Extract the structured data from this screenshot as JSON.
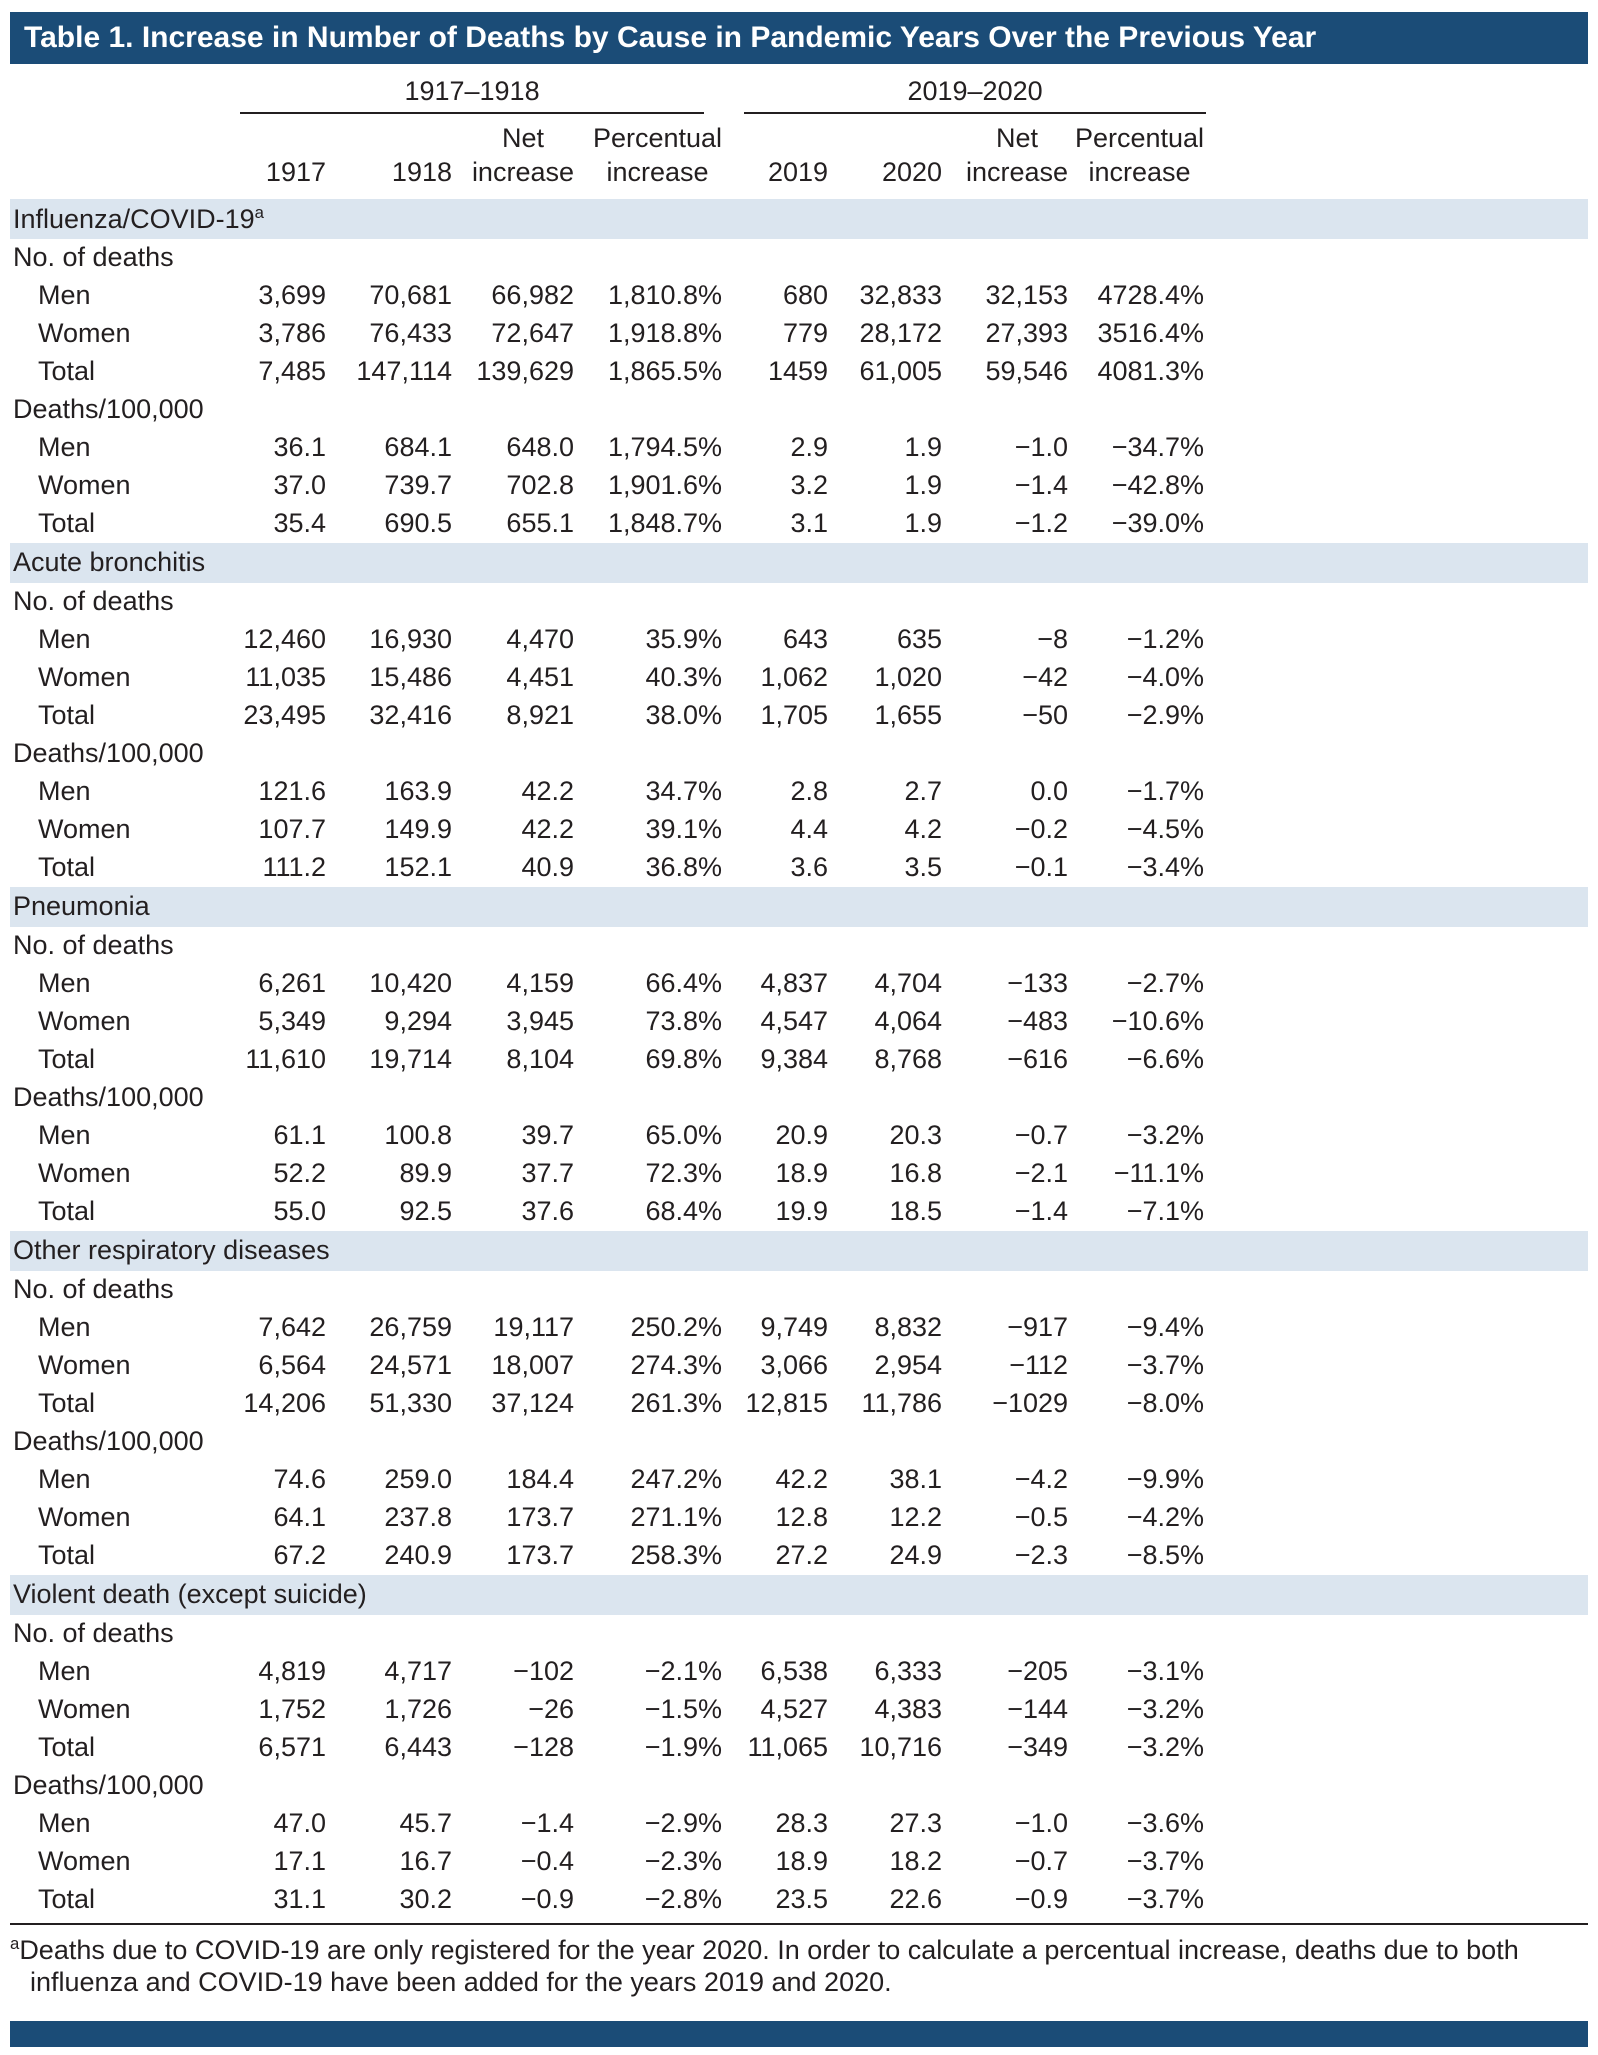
{
  "title": "Table 1. Increase in Number of Deaths by Cause in Pandemic Years Over the Previous Year",
  "colors": {
    "title_bar": "#1b4c77",
    "section_band": "#dbe5ef",
    "text": "#231f20",
    "rule": "#231f20"
  },
  "chart_data": {
    "type": "table",
    "column_groups": [
      "1917–1918",
      "2019–2020"
    ],
    "columns": [
      "1917",
      "1918",
      "Net\nincrease",
      "Percentual\nincrease",
      "2019",
      "2020",
      "Net\nincrease",
      "Percentual\nincrease"
    ],
    "sections": [
      {
        "name": "Influenza/COVID-19",
        "superscript": "a",
        "subsections": [
          {
            "name": "No. of deaths",
            "rows": [
              {
                "label": "Men",
                "values": [
                  "3,699",
                  "70,681",
                  "66,982",
                  "1,810.8%",
                  "680",
                  "32,833",
                  "32,153",
                  "4728.4%"
                ]
              },
              {
                "label": "Women",
                "values": [
                  "3,786",
                  "76,433",
                  "72,647",
                  "1,918.8%",
                  "779",
                  "28,172",
                  "27,393",
                  "3516.4%"
                ]
              },
              {
                "label": "Total",
                "values": [
                  "7,485",
                  "147,114",
                  "139,629",
                  "1,865.5%",
                  "1459",
                  "61,005",
                  "59,546",
                  "4081.3%"
                ]
              }
            ]
          },
          {
            "name": "Deaths/100,000",
            "rows": [
              {
                "label": "Men",
                "values": [
                  "36.1",
                  "684.1",
                  "648.0",
                  "1,794.5%",
                  "2.9",
                  "1.9",
                  "−1.0",
                  "−34.7%"
                ]
              },
              {
                "label": "Women",
                "values": [
                  "37.0",
                  "739.7",
                  "702.8",
                  "1,901.6%",
                  "3.2",
                  "1.9",
                  "−1.4",
                  "−42.8%"
                ]
              },
              {
                "label": "Total",
                "values": [
                  "35.4",
                  "690.5",
                  "655.1",
                  "1,848.7%",
                  "3.1",
                  "1.9",
                  "−1.2",
                  "−39.0%"
                ]
              }
            ]
          }
        ]
      },
      {
        "name": "Acute bronchitis",
        "superscript": "",
        "subsections": [
          {
            "name": "No. of deaths",
            "rows": [
              {
                "label": "Men",
                "values": [
                  "12,460",
                  "16,930",
                  "4,470",
                  "35.9%",
                  "643",
                  "635",
                  "−8",
                  "−1.2%"
                ]
              },
              {
                "label": "Women",
                "values": [
                  "11,035",
                  "15,486",
                  "4,451",
                  "40.3%",
                  "1,062",
                  "1,020",
                  "−42",
                  "−4.0%"
                ]
              },
              {
                "label": "Total",
                "values": [
                  "23,495",
                  "32,416",
                  "8,921",
                  "38.0%",
                  "1,705",
                  "1,655",
                  "−50",
                  "−2.9%"
                ]
              }
            ]
          },
          {
            "name": "Deaths/100,000",
            "rows": [
              {
                "label": "Men",
                "values": [
                  "121.6",
                  "163.9",
                  "42.2",
                  "34.7%",
                  "2.8",
                  "2.7",
                  "0.0",
                  "−1.7%"
                ]
              },
              {
                "label": "Women",
                "values": [
                  "107.7",
                  "149.9",
                  "42.2",
                  "39.1%",
                  "4.4",
                  "4.2",
                  "−0.2",
                  "−4.5%"
                ]
              },
              {
                "label": "Total",
                "values": [
                  "111.2",
                  "152.1",
                  "40.9",
                  "36.8%",
                  "3.6",
                  "3.5",
                  "−0.1",
                  "−3.4%"
                ]
              }
            ]
          }
        ]
      },
      {
        "name": "Pneumonia",
        "superscript": "",
        "subsections": [
          {
            "name": "No. of deaths",
            "rows": [
              {
                "label": "Men",
                "values": [
                  "6,261",
                  "10,420",
                  "4,159",
                  "66.4%",
                  "4,837",
                  "4,704",
                  "−133",
                  "−2.7%"
                ]
              },
              {
                "label": "Women",
                "values": [
                  "5,349",
                  "9,294",
                  "3,945",
                  "73.8%",
                  "4,547",
                  "4,064",
                  "−483",
                  "−10.6%"
                ]
              },
              {
                "label": "Total",
                "values": [
                  "11,610",
                  "19,714",
                  "8,104",
                  "69.8%",
                  "9,384",
                  "8,768",
                  "−616",
                  "−6.6%"
                ]
              }
            ]
          },
          {
            "name": "Deaths/100,000",
            "rows": [
              {
                "label": "Men",
                "values": [
                  "61.1",
                  "100.8",
                  "39.7",
                  "65.0%",
                  "20.9",
                  "20.3",
                  "−0.7",
                  "−3.2%"
                ]
              },
              {
                "label": "Women",
                "values": [
                  "52.2",
                  "89.9",
                  "37.7",
                  "72.3%",
                  "18.9",
                  "16.8",
                  "−2.1",
                  "−11.1%"
                ]
              },
              {
                "label": "Total",
                "values": [
                  "55.0",
                  "92.5",
                  "37.6",
                  "68.4%",
                  "19.9",
                  "18.5",
                  "−1.4",
                  "−7.1%"
                ]
              }
            ]
          }
        ]
      },
      {
        "name": "Other respiratory diseases",
        "superscript": "",
        "subsections": [
          {
            "name": "No. of deaths",
            "rows": [
              {
                "label": "Men",
                "values": [
                  "7,642",
                  "26,759",
                  "19,117",
                  "250.2%",
                  "9,749",
                  "8,832",
                  "−917",
                  "−9.4%"
                ]
              },
              {
                "label": "Women",
                "values": [
                  "6,564",
                  "24,571",
                  "18,007",
                  "274.3%",
                  "3,066",
                  "2,954",
                  "−112",
                  "−3.7%"
                ]
              },
              {
                "label": "Total",
                "values": [
                  "14,206",
                  "51,330",
                  "37,124",
                  "261.3%",
                  "12,815",
                  "11,786",
                  "−1029",
                  "−8.0%"
                ]
              }
            ]
          },
          {
            "name": "Deaths/100,000",
            "rows": [
              {
                "label": "Men",
                "values": [
                  "74.6",
                  "259.0",
                  "184.4",
                  "247.2%",
                  "42.2",
                  "38.1",
                  "−4.2",
                  "−9.9%"
                ]
              },
              {
                "label": "Women",
                "values": [
                  "64.1",
                  "237.8",
                  "173.7",
                  "271.1%",
                  "12.8",
                  "12.2",
                  "−0.5",
                  "−4.2%"
                ]
              },
              {
                "label": "Total",
                "values": [
                  "67.2",
                  "240.9",
                  "173.7",
                  "258.3%",
                  "27.2",
                  "24.9",
                  "−2.3",
                  "−8.5%"
                ]
              }
            ]
          }
        ]
      },
      {
        "name": "Violent death (except suicide)",
        "superscript": "",
        "subsections": [
          {
            "name": "No. of deaths",
            "rows": [
              {
                "label": "Men",
                "values": [
                  "4,819",
                  "4,717",
                  "−102",
                  "−2.1%",
                  "6,538",
                  "6,333",
                  "−205",
                  "−3.1%"
                ]
              },
              {
                "label": "Women",
                "values": [
                  "1,752",
                  "1,726",
                  "−26",
                  "−1.5%",
                  "4,527",
                  "4,383",
                  "−144",
                  "−3.2%"
                ]
              },
              {
                "label": "Total",
                "values": [
                  "6,571",
                  "6,443",
                  "−128",
                  "−1.9%",
                  "11,065",
                  "10,716",
                  "−349",
                  "−3.2%"
                ]
              }
            ]
          },
          {
            "name": "Deaths/100,000",
            "rows": [
              {
                "label": "Men",
                "values": [
                  "47.0",
                  "45.7",
                  "−1.4",
                  "−2.9%",
                  "28.3",
                  "27.3",
                  "−1.0",
                  "−3.6%"
                ]
              },
              {
                "label": "Women",
                "values": [
                  "17.1",
                  "16.7",
                  "−0.4",
                  "−2.3%",
                  "18.9",
                  "18.2",
                  "−0.7",
                  "−3.7%"
                ]
              },
              {
                "label": "Total",
                "values": [
                  "31.1",
                  "30.2",
                  "−0.9",
                  "−2.8%",
                  "23.5",
                  "22.6",
                  "−0.9",
                  "−3.7%"
                ]
              }
            ]
          }
        ]
      }
    ],
    "footnote": {
      "marker": "a",
      "text": "Deaths due to COVID-19 are only registered for the year 2020. In order to calculate a percentual increase, deaths due to both influenza and COVID-19 have been added for the years 2019 and 2020."
    }
  }
}
